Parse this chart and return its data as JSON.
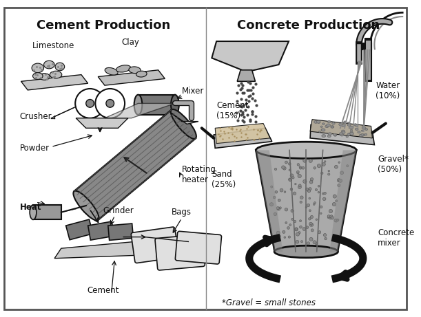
{
  "title_cement": "Cement Production",
  "title_concrete": "Concrete Production",
  "footnote": "*Gravel = small stones",
  "title_fontsize": 13,
  "label_fontsize": 8.5,
  "fig_width": 6.11,
  "fig_height": 4.61,
  "bg_color": "white",
  "border_color": "#555555",
  "text_color": "#111111"
}
